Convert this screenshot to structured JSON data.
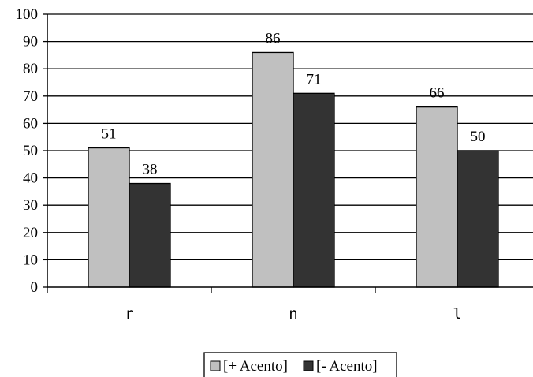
{
  "chart_data": {
    "type": "bar",
    "categories": [
      "r",
      "n",
      "l"
    ],
    "series": [
      {
        "name": "[+ Acento]",
        "color": "#c0c0c0",
        "values": [
          51,
          86,
          66
        ]
      },
      {
        "name": "[- Acento]",
        "color": "#333333",
        "values": [
          38,
          71,
          50
        ]
      }
    ],
    "ylim": [
      0,
      100
    ],
    "yticks": [
      0,
      10,
      20,
      30,
      40,
      50,
      60,
      70,
      80,
      90,
      100
    ],
    "grid": true,
    "legend_position": "bottom",
    "title": "",
    "xlabel": "",
    "ylabel": ""
  }
}
